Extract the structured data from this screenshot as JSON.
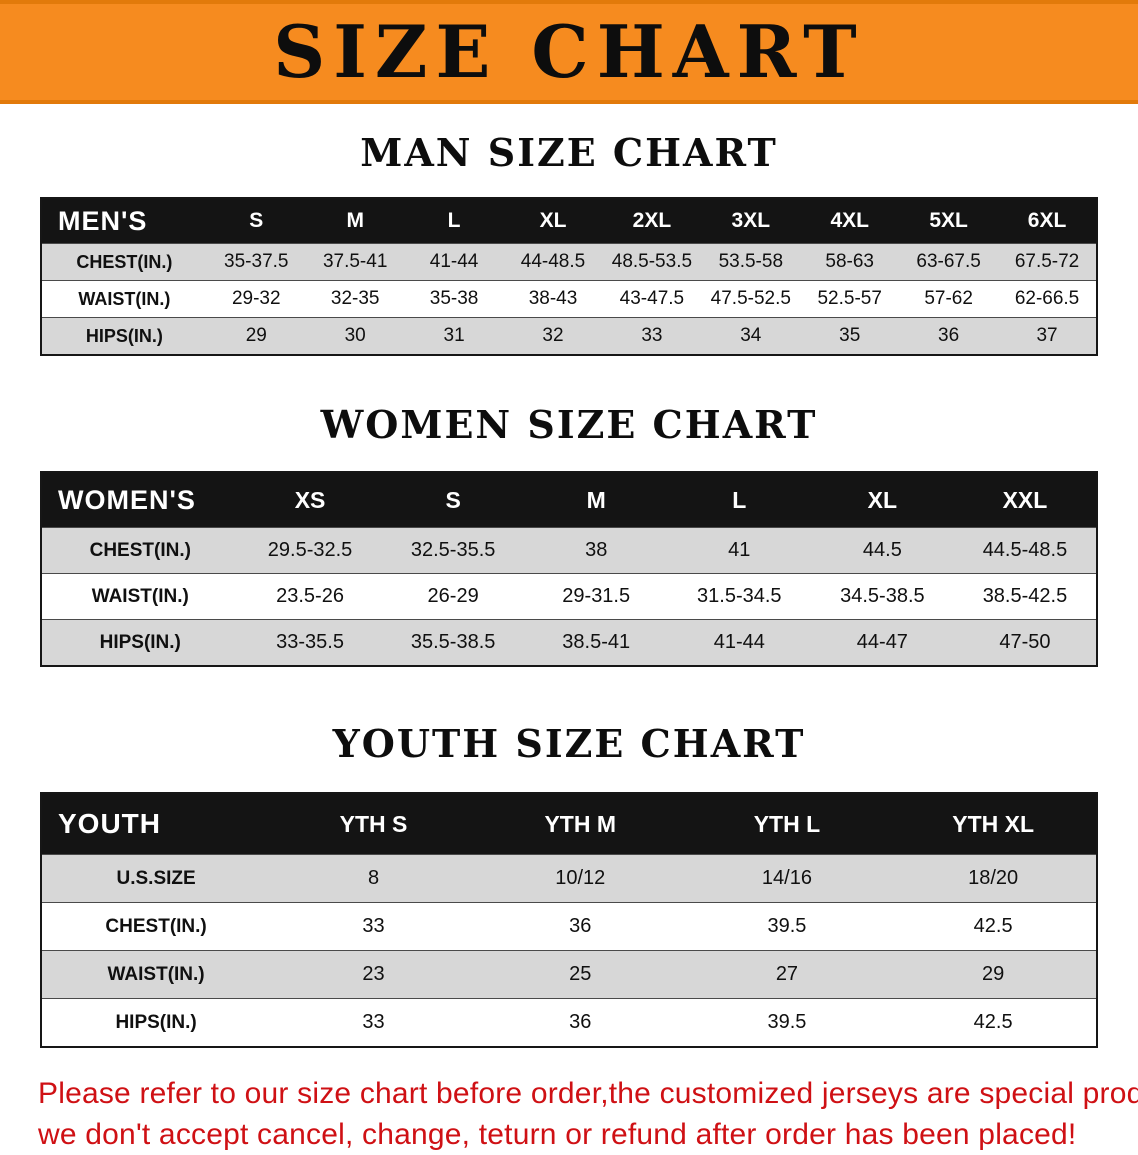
{
  "banner": {
    "title": "SIZE CHART"
  },
  "sections": [
    {
      "id": "men",
      "heading": "MAN SIZE CHART",
      "table": {
        "header": [
          "MEN'S",
          "S",
          "M",
          "L",
          "XL",
          "2XL",
          "3XL",
          "4XL",
          "5XL",
          "6XL"
        ],
        "rows": [
          [
            "CHEST(IN.)",
            "35-37.5",
            "37.5-41",
            "41-44",
            "44-48.5",
            "48.5-53.5",
            "53.5-58",
            "58-63",
            "63-67.5",
            "67.5-72"
          ],
          [
            "WAIST(IN.)",
            "29-32",
            "32-35",
            "35-38",
            "38-43",
            "43-47.5",
            "47.5-52.5",
            "52.5-57",
            "57-62",
            "62-66.5"
          ],
          [
            "HIPS(IN.)",
            "29",
            "30",
            "31",
            "32",
            "33",
            "34",
            "35",
            "36",
            "37"
          ]
        ]
      }
    },
    {
      "id": "women",
      "heading": "WOMEN SIZE CHART",
      "table": {
        "header": [
          "WOMEN'S",
          "XS",
          "S",
          "M",
          "L",
          "XL",
          "XXL"
        ],
        "rows": [
          [
            "CHEST(IN.)",
            "29.5-32.5",
            "32.5-35.5",
            "38",
            "41",
            "44.5",
            "44.5-48.5"
          ],
          [
            "WAIST(IN.)",
            "23.5-26",
            "26-29",
            "29-31.5",
            "31.5-34.5",
            "34.5-38.5",
            "38.5-42.5"
          ],
          [
            "HIPS(IN.)",
            "33-35.5",
            "35.5-38.5",
            "38.5-41",
            "41-44",
            "44-47",
            "47-50"
          ]
        ]
      }
    },
    {
      "id": "youth",
      "heading": "YOUTH SIZE CHART",
      "table": {
        "header": [
          "YOUTH",
          "YTH S",
          "YTH M",
          "YTH L",
          "YTH XL"
        ],
        "rows": [
          [
            "U.S.SIZE",
            "8",
            "10/12",
            "14/16",
            "18/20"
          ],
          [
            "CHEST(IN.)",
            "33",
            "36",
            "39.5",
            "42.5"
          ],
          [
            "WAIST(IN.)",
            "23",
            "25",
            "27",
            "29"
          ],
          [
            "HIPS(IN.)",
            "33",
            "36",
            "39.5",
            "42.5"
          ]
        ]
      }
    }
  ],
  "footer": {
    "line1": "Please refer to our size chart before order,the customized jerseys are special products,",
    "line2": "we don't accept cancel, change, teturn or refund after order has been placed!"
  },
  "colors": {
    "banner_orange": "#f68b1f",
    "header_black": "#141414",
    "stripe_gray": "#d7d7d7",
    "note_red": "#cf1014"
  }
}
